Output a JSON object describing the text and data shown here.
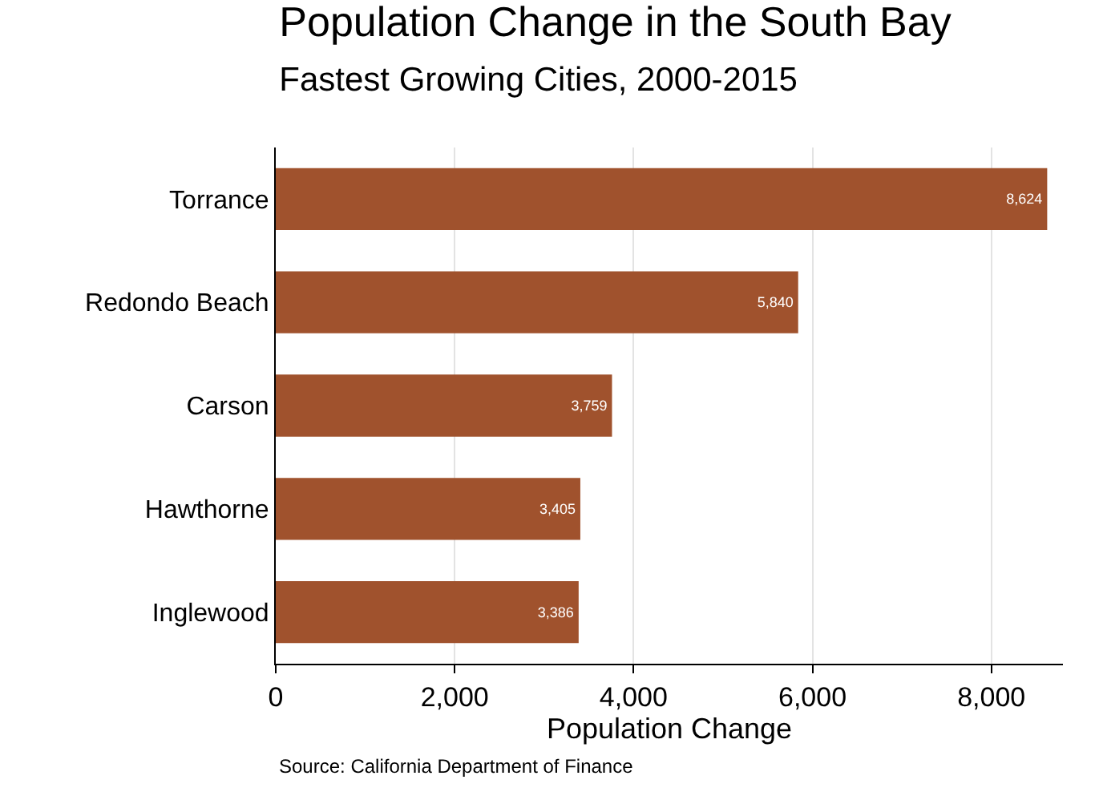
{
  "chart_data": {
    "type": "bar",
    "orientation": "horizontal",
    "title": "Population Change in the South Bay",
    "subtitle": "Fastest Growing Cities, 2000-2015",
    "categories": [
      "Torrance",
      "Redondo Beach",
      "Carson",
      "Hawthorne",
      "Inglewood"
    ],
    "values": [
      8624,
      5840,
      3759,
      3405,
      3386
    ],
    "color": "#a0522d",
    "xlabel": "Population Change",
    "xlim": [
      0,
      8800
    ],
    "xticks": [
      0,
      {
        "value": 2000,
        "label": "2,000"
      },
      {
        "value": 4000,
        "label": "4,000"
      },
      {
        "value": 6000,
        "label": "6,000"
      },
      {
        "value": 8000,
        "label": "8,000"
      }
    ],
    "value_labels": [
      "8,624",
      "5,840",
      "3,759",
      "3,405",
      "3,386"
    ],
    "grid": "x",
    "legend": false,
    "annotations": [
      "Source: California Department of Finance"
    ]
  }
}
